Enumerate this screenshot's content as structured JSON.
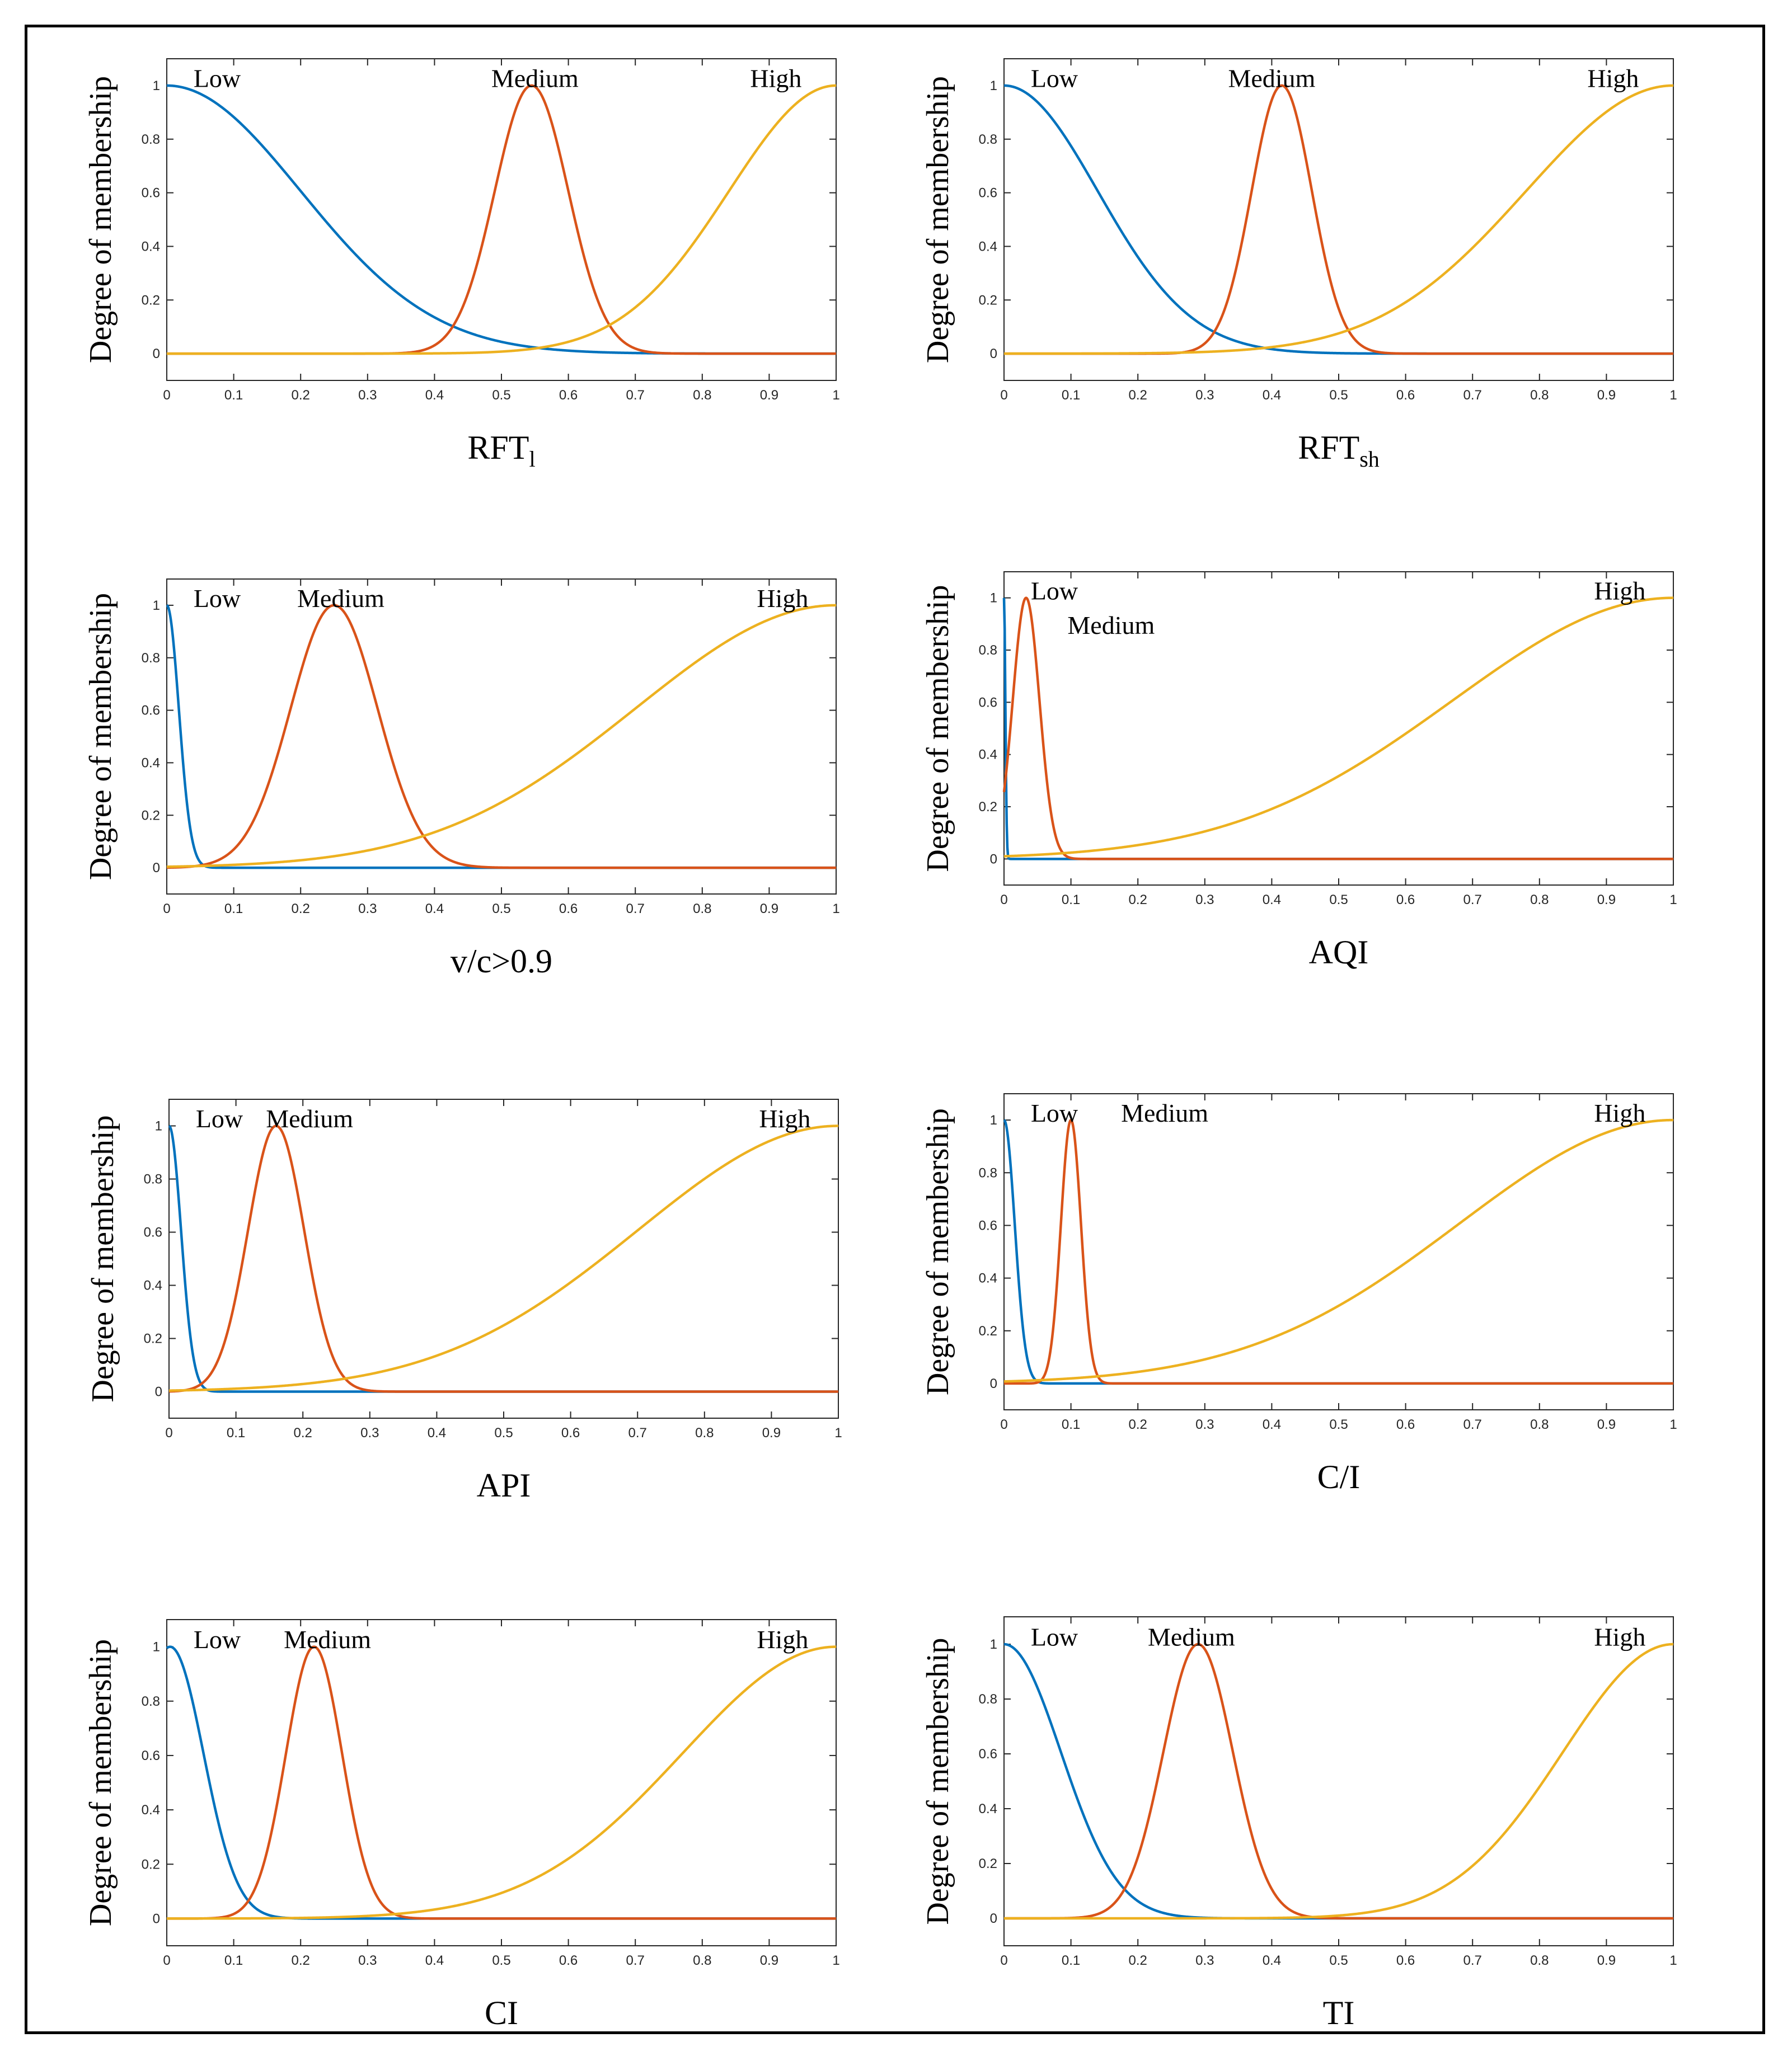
{
  "figure": {
    "ylabel": "Degree of membership",
    "colors": {
      "Low": "#0072BD",
      "Medium": "#D95319",
      "High": "#EDB120",
      "axis": "#262626"
    }
  },
  "chart_data": [
    {
      "type": "line",
      "xlabel": "RFT",
      "xlabel_sub": "l",
      "ylabel": "Degree of membership",
      "xlim": [
        0,
        1
      ],
      "ylim": [
        -0.1,
        1.1
      ],
      "x_ticks": [
        "0",
        "0.1",
        "0.2",
        "0.3",
        "0.4",
        "0.5",
        "0.6",
        "0.7",
        "0.8",
        "0.9",
        "1"
      ],
      "y_ticks": [
        "0",
        "0.2",
        "0.4",
        "0.6",
        "0.8",
        "1"
      ],
      "grid": false,
      "series": [
        {
          "name": "Low",
          "kind": "gaussian",
          "center": 0.0,
          "sigma": 0.2
        },
        {
          "name": "Medium",
          "kind": "gaussian",
          "center": 0.545,
          "sigma": 0.055
        },
        {
          "name": "High",
          "kind": "gaussian",
          "center": 1.0,
          "sigma": 0.16
        }
      ]
    },
    {
      "type": "line",
      "xlabel": "RFT",
      "xlabel_sub": "sh",
      "ylabel": "Degree of membership",
      "xlim": [
        0,
        1
      ],
      "ylim": [
        -0.1,
        1.1
      ],
      "x_ticks": [
        "0",
        "0.1",
        "0.2",
        "0.3",
        "0.4",
        "0.5",
        "0.6",
        "0.7",
        "0.8",
        "0.9",
        "1"
      ],
      "y_ticks": [
        "0",
        "0.2",
        "0.4",
        "0.6",
        "0.8",
        "1"
      ],
      "grid": false,
      "series": [
        {
          "name": "Low",
          "kind": "gaussian",
          "center": 0.0,
          "sigma": 0.14
        },
        {
          "name": "Medium",
          "kind": "gaussian",
          "center": 0.415,
          "sigma": 0.045
        },
        {
          "name": "High",
          "kind": "gaussian",
          "center": 1.0,
          "sigma": 0.22
        }
      ]
    },
    {
      "type": "line",
      "xlabel": "v/c>0.9",
      "xlabel_sub": "",
      "ylabel": "Degree of membership",
      "xlim": [
        0,
        1
      ],
      "ylim": [
        -0.1,
        1.1
      ],
      "x_ticks": [
        "0",
        "0.1",
        "0.2",
        "0.3",
        "0.4",
        "0.5",
        "0.6",
        "0.7",
        "0.8",
        "0.9",
        "1"
      ],
      "y_ticks": [
        "0",
        "0.2",
        "0.4",
        "0.6",
        "0.8",
        "1"
      ],
      "grid": false,
      "series": [
        {
          "name": "Low",
          "kind": "gaussian",
          "center": 0.0,
          "sigma": 0.018
        },
        {
          "name": "Medium",
          "kind": "gaussian",
          "center": 0.25,
          "sigma": 0.065
        },
        {
          "name": "High",
          "kind": "gaussian",
          "center": 1.0,
          "sigma": 0.3
        }
      ]
    },
    {
      "type": "line",
      "xlabel": "AQI",
      "xlabel_sub": "",
      "ylabel": "Degree of membership",
      "xlim": [
        0,
        1
      ],
      "ylim": [
        -0.1,
        1.1
      ],
      "x_ticks": [
        "0",
        "0.1",
        "0.2",
        "0.3",
        "0.4",
        "0.5",
        "0.6",
        "0.7",
        "0.8",
        "0.9",
        "1"
      ],
      "y_ticks": [
        "0",
        "0.2",
        "0.4",
        "0.6",
        "0.8",
        "1"
      ],
      "grid": false,
      "series": [
        {
          "name": "Low",
          "kind": "gaussian",
          "center": 0.0,
          "sigma": 0.002
        },
        {
          "name": "Medium",
          "kind": "gaussian",
          "center": 0.033,
          "sigma": 0.02
        },
        {
          "name": "High",
          "kind": "gaussian",
          "center": 1.0,
          "sigma": 0.33
        }
      ]
    },
    {
      "type": "line",
      "xlabel": "API",
      "xlabel_sub": "",
      "ylabel": "Degree of membership",
      "xlim": [
        0,
        1
      ],
      "ylim": [
        -0.1,
        1.1
      ],
      "x_ticks": [
        "0",
        "0.1",
        "0.2",
        "0.3",
        "0.4",
        "0.5",
        "0.6",
        "0.7",
        "0.8",
        "0.9",
        "1"
      ],
      "y_ticks": [
        "0",
        "0.2",
        "0.4",
        "0.6",
        "0.8",
        "1"
      ],
      "grid": false,
      "series": [
        {
          "name": "Low",
          "kind": "gaussian",
          "center": 0.0,
          "sigma": 0.018
        },
        {
          "name": "Medium",
          "kind": "gaussian",
          "center": 0.16,
          "sigma": 0.042
        },
        {
          "name": "High",
          "kind": "gaussian",
          "center": 1.0,
          "sigma": 0.3
        }
      ]
    },
    {
      "type": "line",
      "xlabel": "C/I",
      "xlabel_sub": "",
      "ylabel": "Degree of membership",
      "xlim": [
        0,
        1
      ],
      "ylim": [
        -0.1,
        1.1
      ],
      "x_ticks": [
        "0",
        "0.1",
        "0.2",
        "0.3",
        "0.4",
        "0.5",
        "0.6",
        "0.7",
        "0.8",
        "0.9",
        "1"
      ],
      "y_ticks": [
        "0",
        "0.2",
        "0.4",
        "0.6",
        "0.8",
        "1"
      ],
      "grid": false,
      "series": [
        {
          "name": "Low",
          "kind": "gaussian",
          "center": 0.0,
          "sigma": 0.016
        },
        {
          "name": "Medium",
          "kind": "gaussian",
          "center": 0.1,
          "sigma": 0.015
        },
        {
          "name": "High",
          "kind": "gaussian",
          "center": 1.0,
          "sigma": 0.32
        }
      ]
    },
    {
      "type": "line",
      "xlabel": "CI",
      "xlabel_sub": "",
      "ylabel": "Degree of membership",
      "xlim": [
        0,
        1
      ],
      "ylim": [
        -0.1,
        1.1
      ],
      "x_ticks": [
        "0",
        "0.1",
        "0.2",
        "0.3",
        "0.4",
        "0.5",
        "0.6",
        "0.7",
        "0.8",
        "0.9",
        "1"
      ],
      "y_ticks": [
        "0",
        "0.2",
        "0.4",
        "0.6",
        "0.8",
        "1"
      ],
      "grid": false,
      "series": [
        {
          "name": "Low",
          "kind": "gaussian",
          "center": 0.005,
          "sigma": 0.05
        },
        {
          "name": "Medium",
          "kind": "gaussian",
          "center": 0.22,
          "sigma": 0.042
        },
        {
          "name": "High",
          "kind": "gaussian",
          "center": 1.0,
          "sigma": 0.23
        }
      ]
    },
    {
      "type": "line",
      "xlabel": "TI",
      "xlabel_sub": "",
      "ylabel": "Degree of membership",
      "xlim": [
        0,
        1
      ],
      "ylim": [
        -0.1,
        1.1
      ],
      "x_ticks": [
        "0",
        "0.1",
        "0.2",
        "0.3",
        "0.4",
        "0.5",
        "0.6",
        "0.7",
        "0.8",
        "0.9",
        "1"
      ],
      "y_ticks": [
        "0",
        "0.2",
        "0.4",
        "0.6",
        "0.8",
        "1"
      ],
      "grid": false,
      "series": [
        {
          "name": "Low",
          "kind": "gaussian",
          "center": 0.0,
          "sigma": 0.085
        },
        {
          "name": "Medium",
          "kind": "gaussian",
          "center": 0.29,
          "sigma": 0.052
        },
        {
          "name": "High",
          "kind": "gaussian",
          "center": 1.0,
          "sigma": 0.165
        }
      ]
    }
  ]
}
